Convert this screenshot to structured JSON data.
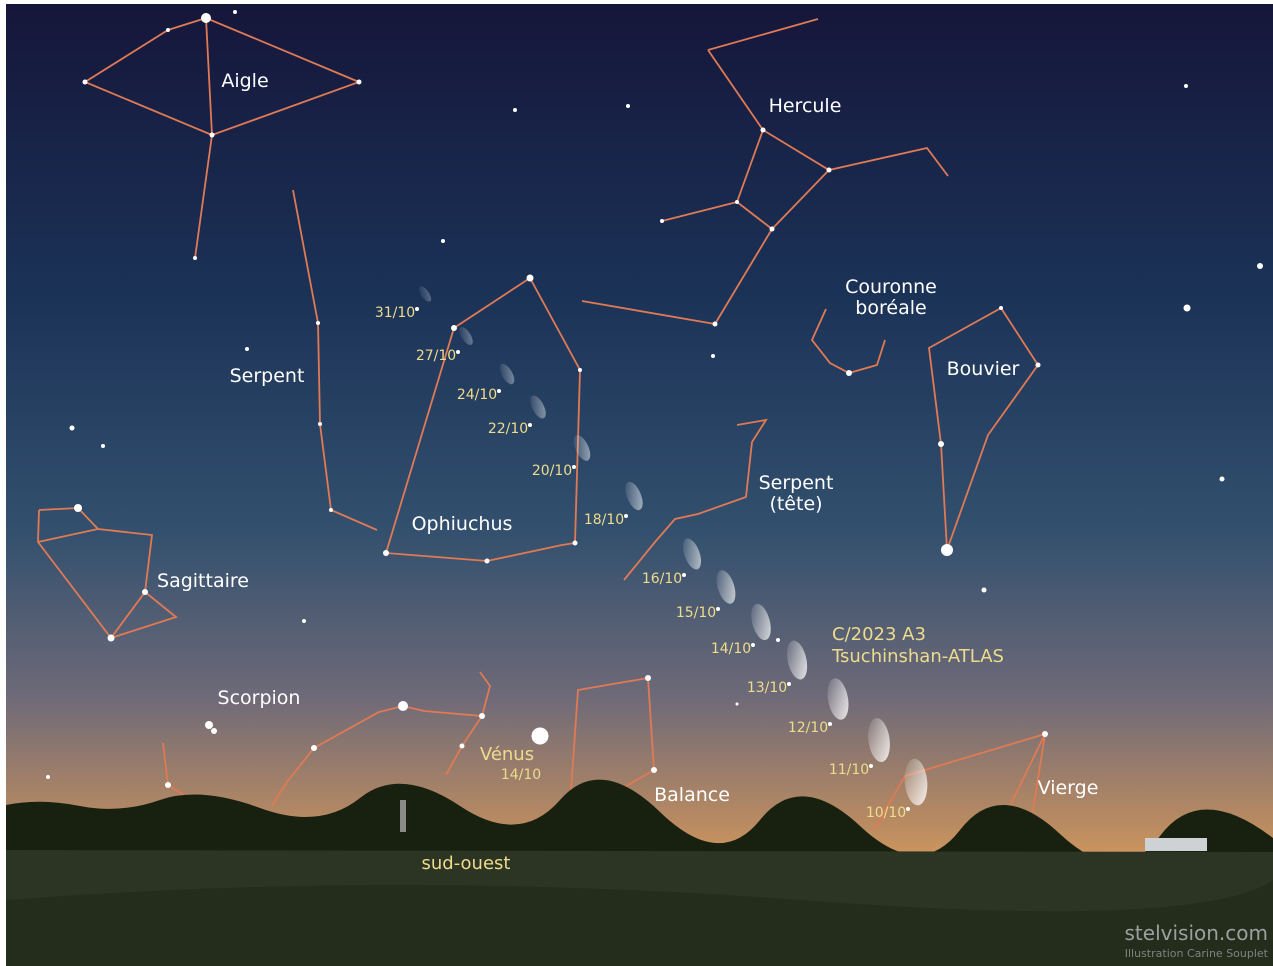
{
  "constellations": [
    {
      "lines": [
        "Aigle"
      ]
    },
    {
      "lines": [
        "Hercule"
      ]
    },
    {
      "lines": [
        "Serpent"
      ]
    },
    {
      "lines": [
        "Couronne",
        "boréale"
      ]
    },
    {
      "lines": [
        "Bouvier"
      ]
    },
    {
      "lines": [
        "Ophiuchus"
      ]
    },
    {
      "lines": [
        "Serpent",
        "(tête)"
      ]
    },
    {
      "lines": [
        "Sagittaire"
      ]
    },
    {
      "lines": [
        "Scorpion"
      ]
    },
    {
      "lines": [
        "Balance"
      ]
    },
    {
      "lines": [
        "Vierge"
      ]
    }
  ],
  "comet": {
    "name": [
      "C/2023 A3",
      "Tsuchinshan-ATLAS"
    ],
    "dates": [
      "31/10",
      "27/10",
      "24/10",
      "22/10",
      "20/10",
      "18/10",
      "16/10",
      "15/10",
      "14/10",
      "13/10",
      "12/10",
      "11/10",
      "10/10"
    ]
  },
  "venus": {
    "label": "Vénus",
    "date": "14/10"
  },
  "direction": "sud-ouest",
  "credits": {
    "site": "stelvision.com",
    "author": "Illustration Carine Souplet"
  }
}
